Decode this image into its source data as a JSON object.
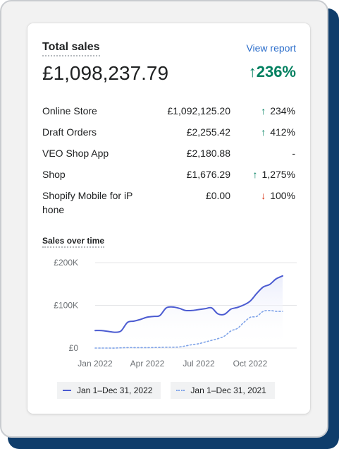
{
  "card": {
    "title": "Total sales",
    "view_report": "View report",
    "total": "£1,098,237.79",
    "change": "236%",
    "change_direction": "up"
  },
  "rows": [
    {
      "name": "Online Store",
      "amount": "£1,092,125.20",
      "change": "234%",
      "dir": "up"
    },
    {
      "name": "Draft Orders",
      "amount": "£2,255.42",
      "change": "412%",
      "dir": "up"
    },
    {
      "name": "VEO Shop App",
      "amount": "£2,180.88",
      "change": "-",
      "dir": "none"
    },
    {
      "name": "Shop",
      "amount": "£1,676.29",
      "change": "1,275%",
      "dir": "up"
    },
    {
      "name": "Shopify Mobile for iP hone",
      "amount": "£0.00",
      "change": "100%",
      "dir": "down"
    }
  ],
  "chart_title": "Sales over time",
  "colors": {
    "up": "#008060",
    "down": "#d72c0d",
    "current": "#4b5bd1",
    "previous": "#7fa3e8"
  },
  "chart_data": {
    "type": "line",
    "title": "Sales over time",
    "ylim": [
      0,
      200000
    ],
    "y_ticks": [
      "£0",
      "£100K",
      "£200K"
    ],
    "x_ticks": [
      "Jan 2022",
      "Apr 2022",
      "Jul 2022",
      "Oct 2022"
    ],
    "grid": true,
    "legend_position": "bottom",
    "series": [
      {
        "name": "Jan 1–Dec 31, 2022",
        "style": "solid",
        "values": [
          41000,
          41000,
          39000,
          37000,
          40000,
          60000,
          63000,
          67000,
          72000,
          74000,
          76000,
          94000,
          96000,
          93000,
          88000,
          88000,
          90000,
          92000,
          94000,
          80000,
          79000,
          91000,
          95000,
          101000,
          110000,
          128000,
          143000,
          149000,
          162000,
          169000
        ]
      },
      {
        "name": "Jan 1–Dec 31, 2021",
        "style": "dotted",
        "values": [
          0,
          0,
          0,
          0,
          500,
          1000,
          1000,
          1000,
          1000,
          1200,
          1500,
          2000,
          2000,
          2500,
          5000,
          8000,
          10000,
          14000,
          18000,
          22000,
          28000,
          40000,
          46000,
          60000,
          72000,
          74000,
          86000,
          88000,
          86000,
          86000
        ]
      }
    ]
  }
}
